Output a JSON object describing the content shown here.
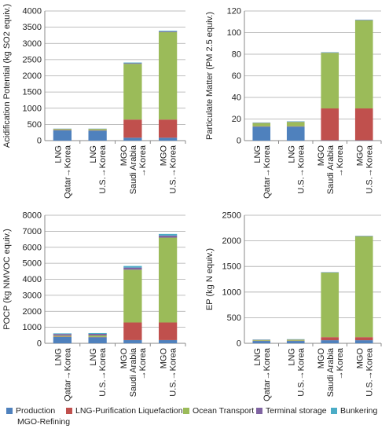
{
  "colors": {
    "Production": "#4f81bd",
    "LNG-Purification Liquefaction": "#c0504d",
    "Ocean Transport": "#9bbb59",
    "Terminal storage": "#8064a2",
    "Bunkering": "#4bacc6"
  },
  "legend": {
    "items": [
      "Production",
      "LNG-Purification Liquefaction",
      "Ocean Transport",
      "Terminal storage",
      "Bunkering"
    ],
    "second_line": "MGO-Refining"
  },
  "chart_data": [
    {
      "type": "bar",
      "stacked": true,
      "ylabel": "Acidification Potential (kg SO2 equiv.)",
      "ylim": [
        0,
        4000
      ],
      "yticks": [
        0,
        500,
        1000,
        1500,
        2000,
        2500,
        3000,
        3500,
        4000
      ],
      "grid": true,
      "categories": [
        [
          "LNG",
          "Qatar→Korea"
        ],
        [
          "LNG",
          "U.S.→Korea"
        ],
        [
          "MGO",
          "Saudi Arabia",
          "→Korea"
        ],
        [
          "MGO",
          "U.S.→Korea"
        ]
      ],
      "series": [
        {
          "name": "Production",
          "values": [
            320,
            310,
            90,
            90
          ]
        },
        {
          "name": "LNG-Purification Liquefaction",
          "values": [
            10,
            10,
            560,
            560
          ]
        },
        {
          "name": "Ocean Transport",
          "values": [
            30,
            40,
            1720,
            2700
          ]
        },
        {
          "name": "Terminal storage",
          "values": [
            5,
            5,
            20,
            20
          ]
        },
        {
          "name": "Bunkering",
          "values": [
            5,
            5,
            20,
            20
          ]
        }
      ]
    },
    {
      "type": "bar",
      "stacked": true,
      "ylabel": "Particulate Matter (PM 2.5 equiv.)",
      "ylim": [
        0,
        120
      ],
      "yticks": [
        0,
        20,
        40,
        60,
        80,
        100,
        120
      ],
      "grid": true,
      "categories": [
        [
          "LNG",
          "Qatar→Korea"
        ],
        [
          "LNG",
          "U.S.→Korea"
        ],
        [
          "MGO",
          "Saudi Arabia",
          "→Korea"
        ],
        [
          "MGO",
          "U.S.→Korea"
        ]
      ],
      "series": [
        {
          "name": "Production",
          "values": [
            13,
            13,
            0.3,
            0.3
          ]
        },
        {
          "name": "LNG-Purification Liquefaction",
          "values": [
            0.3,
            0.3,
            29.5,
            29.5
          ]
        },
        {
          "name": "Ocean Transport",
          "values": [
            3,
            4,
            51.5,
            81.5
          ]
        },
        {
          "name": "Terminal storage",
          "values": [
            0.3,
            0.3,
            0.3,
            0.3
          ]
        },
        {
          "name": "Bunkering",
          "values": [
            0.2,
            0.3,
            0.3,
            0.3
          ]
        }
      ]
    },
    {
      "type": "bar",
      "stacked": true,
      "ylabel": "POCP (kg NMVOC equiv.)",
      "ylim": [
        0,
        8000
      ],
      "yticks": [
        0,
        1000,
        2000,
        3000,
        4000,
        5000,
        6000,
        7000,
        8000
      ],
      "grid": true,
      "categories": [
        [
          "LNG",
          "Qatar→Korea"
        ],
        [
          "LNG",
          "U.S.→Korea"
        ],
        [
          "MGO",
          "Saudi Arabia",
          "→Korea"
        ],
        [
          "MGO",
          "U.S.→Korea"
        ]
      ],
      "series": [
        {
          "name": "Production",
          "values": [
            400,
            380,
            200,
            200
          ]
        },
        {
          "name": "LNG-Purification Liquefaction",
          "values": [
            20,
            20,
            1100,
            1100
          ]
        },
        {
          "name": "Ocean Transport",
          "values": [
            60,
            90,
            3300,
            5300
          ]
        },
        {
          "name": "Terminal storage",
          "values": [
            100,
            100,
            130,
            130
          ]
        },
        {
          "name": "Bunkering",
          "values": [
            40,
            50,
            100,
            100
          ]
        }
      ]
    },
    {
      "type": "bar",
      "stacked": true,
      "ylabel": "EP (kg N equiv.)",
      "ylim": [
        0,
        2500
      ],
      "yticks": [
        0,
        500,
        1000,
        1500,
        2000,
        2500
      ],
      "grid": true,
      "categories": [
        [
          "LNG",
          "Qatar→Korea"
        ],
        [
          "LNG",
          "U.S.→Korea"
        ],
        [
          "MGO",
          "Saudi Arabia",
          "→Korea"
        ],
        [
          "MGO",
          "U.S.→Korea"
        ]
      ],
      "series": [
        {
          "name": "Production",
          "values": [
            45,
            45,
            60,
            60
          ]
        },
        {
          "name": "LNG-Purification Liquefaction",
          "values": [
            5,
            5,
            60,
            60
          ]
        },
        {
          "name": "Ocean Transport",
          "values": [
            15,
            20,
            1260,
            1970
          ]
        },
        {
          "name": "Terminal storage",
          "values": [
            5,
            5,
            5,
            5
          ]
        },
        {
          "name": "Bunkering",
          "values": [
            5,
            5,
            5,
            5
          ]
        }
      ]
    }
  ]
}
